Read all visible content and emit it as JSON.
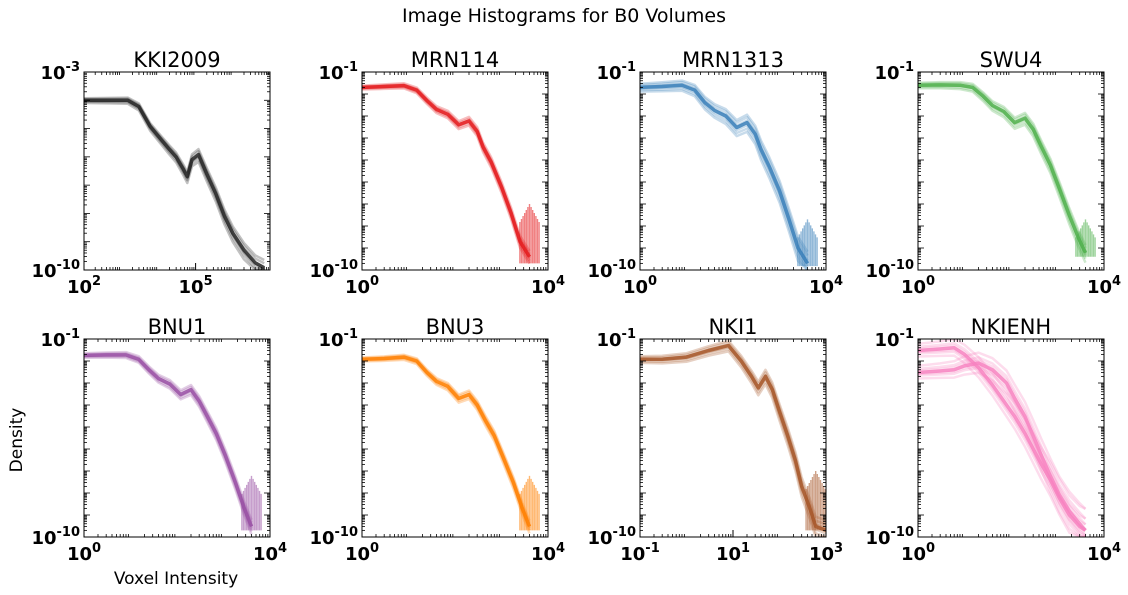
{
  "figure": {
    "suptitle": "Image Histograms for B0 Volumes",
    "ylabel": "Density",
    "xlabel": "Voxel Intensity"
  },
  "chart_data": [
    {
      "type": "line",
      "title": "KKI2009",
      "color": "#222222",
      "xscale": "log",
      "yscale": "log",
      "xlim": [
        100,
        10000000
      ],
      "ylim": [
        1e-10,
        0.001
      ],
      "xticks": [
        {
          "base": "10",
          "exp": "2"
        },
        {
          "base": "10",
          "exp": "5"
        }
      ],
      "yticks": [
        {
          "base": "10",
          "exp": "-3"
        },
        {
          "base": "10",
          "exp": "-10"
        }
      ],
      "x": [
        100,
        500,
        1500,
        3000,
        6000,
        12000,
        20000,
        30000,
        45000,
        60000,
        80000,
        120000,
        200000,
        350000,
        600000,
        1000000,
        2000000,
        4000000,
        7000000
      ],
      "y": [
        0.0001,
        0.0001,
        0.0001,
        6e-05,
        1.2e-05,
        4e-06,
        1.8e-06,
        1e-06,
        4e-07,
        2e-07,
        8e-07,
        1.2e-06,
        2.5e-07,
        5e-08,
        8e-09,
        2e-09,
        5e-10,
        1.8e-10,
        1.2e-10
      ],
      "ghost_offsets": [
        0.25,
        -0.2,
        0.45,
        -0.35,
        0.1
      ]
    },
    {
      "type": "line",
      "title": "MRN114",
      "color": "#e41a1c",
      "xscale": "log",
      "yscale": "log",
      "xlim": [
        1,
        10000
      ],
      "ylim": [
        1e-10,
        0.1
      ],
      "xticks": [
        {
          "base": "10",
          "exp": "0"
        },
        {
          "base": "10",
          "exp": "4"
        }
      ],
      "yticks": [
        {
          "base": "10",
          "exp": "-1"
        },
        {
          "base": "10",
          "exp": "-10"
        }
      ],
      "x": [
        1,
        3,
        8,
        15,
        25,
        40,
        70,
        120,
        200,
        300,
        400,
        600,
        1000,
        1600,
        2500,
        4000
      ],
      "y": [
        0.02,
        0.022,
        0.024,
        0.015,
        0.005,
        0.002,
        0.0012,
        0.0004,
        0.0006,
        0.0002,
        4e-05,
        8e-06,
        6e-07,
        4e-08,
        2e-09,
        4e-10
      ],
      "tail": {
        "x": 4000,
        "y_from": 1e-07,
        "y_to": 2e-10
      },
      "ghost_offsets": [
        0.2,
        -0.15,
        0.35,
        -0.3,
        0.08
      ]
    },
    {
      "type": "line",
      "title": "MRN1313",
      "color": "#377eb8",
      "xscale": "log",
      "yscale": "log",
      "xlim": [
        1,
        10000
      ],
      "ylim": [
        1e-10,
        0.1
      ],
      "xticks": [
        {
          "base": "10",
          "exp": "0"
        },
        {
          "base": "10",
          "exp": "4"
        }
      ],
      "yticks": [
        {
          "base": "10",
          "exp": "-1"
        },
        {
          "base": "10",
          "exp": "-10"
        }
      ],
      "x": [
        1,
        3,
        8,
        15,
        25,
        40,
        70,
        120,
        200,
        300,
        400,
        600,
        1000,
        1600,
        2500,
        4000
      ],
      "y": [
        0.02,
        0.022,
        0.025,
        0.015,
        0.004,
        0.0018,
        0.001,
        0.0003,
        0.0005,
        0.00015,
        3e-05,
        5e-06,
        4e-07,
        2e-08,
        1e-09,
        2e-10
      ],
      "tail": {
        "x": 4000,
        "y_from": 2e-08,
        "y_to": 1.5e-10
      },
      "ghost_offsets": [
        0.45,
        -0.4,
        0.7,
        -0.6,
        0.2,
        -0.15
      ]
    },
    {
      "type": "line",
      "title": "SWU4",
      "color": "#4daf4a",
      "xscale": "log",
      "yscale": "log",
      "xlim": [
        1,
        10000
      ],
      "ylim": [
        1e-10,
        0.1
      ],
      "xticks": [
        {
          "base": "10",
          "exp": "0"
        },
        {
          "base": "10",
          "exp": "4"
        }
      ],
      "yticks": [
        {
          "base": "10",
          "exp": "-1"
        },
        {
          "base": "10",
          "exp": "-10"
        }
      ],
      "x": [
        1,
        3,
        8,
        15,
        25,
        40,
        70,
        120,
        200,
        300,
        450,
        700,
        1100,
        1800,
        2800,
        4000
      ],
      "y": [
        0.025,
        0.026,
        0.025,
        0.02,
        0.008,
        0.003,
        0.0016,
        0.0005,
        0.0008,
        0.00025,
        4e-05,
        6e-06,
        5e-07,
        3e-08,
        3e-09,
        6e-10
      ],
      "tail": {
        "x": 4000,
        "y_from": 2e-08,
        "y_to": 4e-10
      },
      "ghost_offsets": [
        0.3,
        -0.25,
        0.5,
        -0.4,
        0.1
      ]
    },
    {
      "type": "line",
      "title": "BNU1",
      "color": "#984ea3",
      "xscale": "log",
      "yscale": "log",
      "xlim": [
        1,
        10000
      ],
      "ylim": [
        1e-10,
        0.1
      ],
      "xticks": [
        {
          "base": "10",
          "exp": "0"
        },
        {
          "base": "10",
          "exp": "4"
        }
      ],
      "yticks": [
        {
          "base": "10",
          "exp": "-1"
        },
        {
          "base": "10",
          "exp": "-10"
        }
      ],
      "x": [
        1,
        3,
        8,
        15,
        25,
        40,
        70,
        120,
        200,
        300,
        450,
        700,
        1100,
        1800,
        2800,
        4000
      ],
      "y": [
        0.018,
        0.019,
        0.019,
        0.012,
        0.004,
        0.0016,
        0.0009,
        0.0003,
        0.0005,
        0.00015,
        3e-05,
        5e-06,
        5e-07,
        3e-08,
        2e-09,
        3e-10
      ],
      "tail": {
        "x": 4000,
        "y_from": 6e-08,
        "y_to": 2e-10
      },
      "ghost_offsets": [
        0.25,
        -0.2,
        0.4,
        -0.35,
        0.1
      ]
    },
    {
      "type": "line",
      "title": "BNU3",
      "color": "#ff7f00",
      "xscale": "log",
      "yscale": "log",
      "xlim": [
        1,
        10000
      ],
      "ylim": [
        1e-10,
        0.1
      ],
      "xticks": [
        {
          "base": "10",
          "exp": "0"
        },
        {
          "base": "10",
          "exp": "4"
        }
      ],
      "yticks": [
        {
          "base": "10",
          "exp": "-1"
        },
        {
          "base": "10",
          "exp": "-10"
        }
      ],
      "x": [
        1,
        3,
        8,
        15,
        25,
        40,
        70,
        120,
        200,
        300,
        450,
        700,
        1100,
        1800,
        2800,
        4000
      ],
      "y": [
        0.012,
        0.013,
        0.015,
        0.01,
        0.003,
        0.0012,
        0.0007,
        0.0002,
        0.0003,
        0.0001,
        2e-05,
        4e-06,
        4e-07,
        3e-08,
        2e-09,
        3e-10
      ],
      "tail": {
        "x": 4000,
        "y_from": 6e-08,
        "y_to": 2e-10
      },
      "ghost_offsets": [
        0.2,
        -0.18,
        0.35,
        -0.3,
        0.08
      ]
    },
    {
      "type": "line",
      "title": "NKI1",
      "color": "#a65628",
      "xscale": "log",
      "yscale": "log",
      "xlim": [
        0.1,
        1000
      ],
      "ylim": [
        1e-10,
        0.1
      ],
      "xticks": [
        {
          "base": "10",
          "exp": "-1"
        },
        {
          "base": "10",
          "exp": "1"
        },
        {
          "base": "10",
          "exp": "3"
        }
      ],
      "yticks": [
        {
          "base": "10",
          "exp": "-1"
        },
        {
          "base": "10",
          "exp": "-10"
        }
      ],
      "x": [
        0.1,
        0.3,
        1,
        3,
        8,
        15,
        25,
        35,
        50,
        70,
        100,
        150,
        220,
        300,
        450,
        600,
        1000
      ],
      "y": [
        0.012,
        0.012,
        0.015,
        0.03,
        0.05,
        0.01,
        0.002,
        0.0006,
        0.002,
        0.0005,
        5e-05,
        4e-06,
        3e-07,
        2e-08,
        2e-09,
        3e-10,
        2e-10
      ],
      "tail": {
        "x": 600,
        "y_from": 1e-07,
        "y_to": 2e-10
      },
      "ghost_offsets": [
        0.35,
        -0.3,
        0.6,
        -0.5,
        0.15,
        -0.1
      ]
    },
    {
      "type": "line",
      "title": "NKIENH",
      "color": "#f781bf",
      "xscale": "log",
      "yscale": "log",
      "xlim": [
        1,
        10000
      ],
      "ylim": [
        1e-10,
        0.1
      ],
      "xticks": [
        {
          "base": "10",
          "exp": "0"
        },
        {
          "base": "10",
          "exp": "4"
        }
      ],
      "yticks": [
        {
          "base": "10",
          "exp": "-1"
        },
        {
          "base": "10",
          "exp": "-10"
        }
      ],
      "series": [
        {
          "x": [
            1,
            3,
            6,
            10,
            20,
            40,
            80,
            120,
            200,
            300,
            450,
            700,
            1100,
            1800,
            3000,
            4000
          ],
          "y": [
            0.03,
            0.035,
            0.04,
            0.02,
            0.005,
            0.0008,
            0.0001,
            3e-05,
            5e-06,
            1e-06,
            2e-07,
            4e-08,
            6e-09,
            1e-09,
            3e-10,
            2e-10
          ]
        },
        {
          "x": [
            1,
            3,
            6,
            10,
            20,
            40,
            80,
            120,
            200,
            300,
            450,
            700,
            1100,
            1800,
            3000,
            4000
          ],
          "y": [
            0.003,
            0.0035,
            0.004,
            0.006,
            0.008,
            0.004,
            0.001,
            0.0002,
            3e-05,
            4e-06,
            5e-07,
            6e-08,
            8e-09,
            1.5e-09,
            4e-10,
            2e-10
          ]
        }
      ],
      "ghost_offsets": [
        0.5,
        -0.6,
        1.0,
        -1.1,
        0.25,
        -0.3
      ]
    }
  ]
}
